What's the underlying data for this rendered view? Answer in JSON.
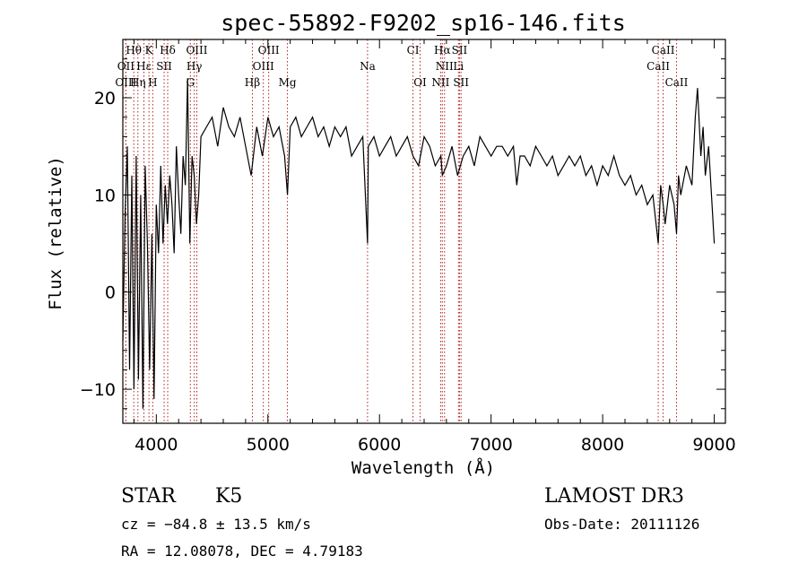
{
  "chart_data": {
    "type": "line",
    "title": "spec-55892-F9202_sp16-146.fits",
    "xlabel": "Wavelength (Å)",
    "ylabel": "Flux (relative)",
    "xlim": [
      3700,
      9100
    ],
    "ylim": [
      -13.5,
      26
    ],
    "x_ticks": [
      4000,
      5000,
      6000,
      7000,
      8000,
      9000
    ],
    "y_ticks": [
      -10,
      0,
      10,
      20
    ],
    "lines": [
      {
        "label": "Hθ",
        "wavelength": 3798,
        "row": 0
      },
      {
        "label": "K",
        "wavelength": 3934,
        "row": 0
      },
      {
        "label": "Hδ",
        "wavelength": 4102,
        "row": 0
      },
      {
        "label": "OIII",
        "wavelength": 4363,
        "row": 0
      },
      {
        "label": "OIII",
        "wavelength": 5007,
        "row": 0
      },
      {
        "label": "CI",
        "wavelength": 6300,
        "row": 0
      },
      {
        "label": "Hα",
        "wavelength": 6563,
        "row": 0
      },
      {
        "label": "SII",
        "wavelength": 6717,
        "row": 0
      },
      {
        "label": "CaII",
        "wavelength": 8542,
        "row": 0
      },
      {
        "label": "OII",
        "wavelength": 3727,
        "row": 1
      },
      {
        "label": "Hε",
        "wavelength": 3889,
        "row": 1
      },
      {
        "label": "SII",
        "wavelength": 4070,
        "row": 1
      },
      {
        "label": "Hγ",
        "wavelength": 4340,
        "row": 1
      },
      {
        "label": "OIII",
        "wavelength": 4959,
        "row": 1
      },
      {
        "label": "Na",
        "wavelength": 5893,
        "row": 1
      },
      {
        "label": "NII",
        "wavelength": 6583,
        "row": 1
      },
      {
        "label": "Li",
        "wavelength": 6708,
        "row": 1
      },
      {
        "label": "CaII",
        "wavelength": 8498,
        "row": 1
      },
      {
        "label": "OIII",
        "wavelength": 3727,
        "row": 2
      },
      {
        "label": "Hη",
        "wavelength": 3835,
        "row": 2
      },
      {
        "label": "H",
        "wavelength": 3968,
        "row": 2
      },
      {
        "label": "G",
        "wavelength": 4305,
        "row": 2
      },
      {
        "label": "Hβ",
        "wavelength": 4861,
        "row": 2
      },
      {
        "label": "Mg",
        "wavelength": 5175,
        "row": 2
      },
      {
        "label": "OI",
        "wavelength": 6364,
        "row": 2
      },
      {
        "label": "NII",
        "wavelength": 6548,
        "row": 2
      },
      {
        "label": "SII",
        "wavelength": 6731,
        "row": 2
      },
      {
        "label": "CaII",
        "wavelength": 8662,
        "row": 2
      }
    ],
    "series": [
      {
        "name": "flux",
        "x": [
          3700,
          3720,
          3740,
          3760,
          3780,
          3800,
          3820,
          3840,
          3860,
          3880,
          3900,
          3920,
          3940,
          3960,
          3980,
          4000,
          4020,
          4040,
          4060,
          4080,
          4100,
          4120,
          4140,
          4160,
          4180,
          4200,
          4220,
          4240,
          4260,
          4280,
          4300,
          4320,
          4340,
          4360,
          4380,
          4400,
          4450,
          4500,
          4550,
          4600,
          4650,
          4700,
          4750,
          4800,
          4850,
          4900,
          4950,
          5000,
          5050,
          5100,
          5150,
          5175,
          5200,
          5250,
          5300,
          5350,
          5400,
          5450,
          5500,
          5550,
          5600,
          5650,
          5700,
          5750,
          5800,
          5850,
          5893,
          5900,
          5950,
          6000,
          6050,
          6100,
          6150,
          6200,
          6250,
          6300,
          6350,
          6400,
          6450,
          6500,
          6550,
          6563,
          6600,
          6650,
          6700,
          6750,
          6800,
          6850,
          6900,
          6950,
          7000,
          7050,
          7100,
          7150,
          7200,
          7230,
          7260,
          7300,
          7350,
          7400,
          7450,
          7500,
          7550,
          7600,
          7650,
          7700,
          7750,
          7800,
          7850,
          7900,
          7950,
          8000,
          8050,
          8100,
          8150,
          8200,
          8250,
          8300,
          8350,
          8400,
          8450,
          8498,
          8520,
          8542,
          8560,
          8600,
          8640,
          8662,
          8680,
          8700,
          8750,
          8800,
          8830,
          8850,
          8880,
          8900,
          8920,
          8950,
          8980,
          9000
        ],
        "y": [
          -5,
          8,
          15,
          -8,
          12,
          -10,
          14,
          -9,
          10,
          -12,
          13,
          5,
          -8,
          6,
          -11,
          9,
          4,
          13,
          5,
          11,
          7,
          12,
          9,
          4,
          15,
          10,
          6,
          14,
          11,
          22,
          5,
          14,
          12,
          7,
          10,
          16,
          17,
          18,
          15,
          19,
          17,
          16,
          18,
          15,
          12,
          17,
          14,
          18,
          16,
          17,
          14,
          10,
          17,
          18,
          16,
          17,
          18,
          16,
          17,
          15,
          17,
          16,
          17,
          14,
          15,
          16,
          5,
          15,
          16,
          14,
          15,
          16,
          14,
          15,
          16,
          14,
          13,
          16,
          15,
          13,
          14,
          12,
          13,
          15,
          12,
          14,
          15,
          13,
          16,
          15,
          14,
          15,
          15,
          14,
          15,
          11,
          14,
          14,
          13,
          15,
          14,
          13,
          14,
          12,
          13,
          14,
          13,
          14,
          12,
          13,
          11,
          13,
          12,
          14,
          12,
          11,
          12,
          10,
          11,
          9,
          10,
          5,
          11,
          9,
          7,
          11,
          9,
          6,
          12,
          10,
          13,
          11,
          18,
          21,
          14,
          17,
          12,
          15,
          9,
          5
        ]
      }
    ]
  },
  "info": {
    "object_class": "STAR",
    "subclass": "K5",
    "survey": "LAMOST DR3",
    "redshift": "cz = −84.8 ± 13.5 km/s",
    "obs_date": "Obs-Date: 20111126",
    "coords": "RA =  12.08078, DEC =   4.79183"
  },
  "colors": {
    "line_marker": "#b22222",
    "spectrum": "#000000"
  }
}
